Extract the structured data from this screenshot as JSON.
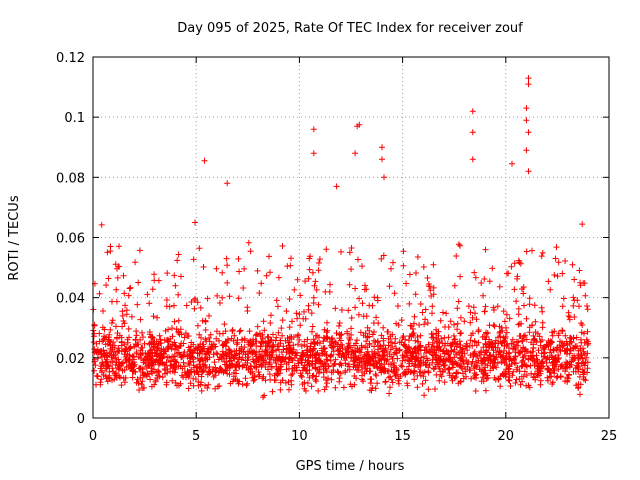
{
  "chart_data": {
    "type": "scatter",
    "title": "Day 095 of 2025, Rate Of TEC Index for receiver zouf",
    "xlabel": "GPS time / hours",
    "ylabel": "ROTI / TECUs",
    "xlim": [
      0,
      25
    ],
    "ylim": [
      0,
      0.12
    ],
    "x_ticks": [
      0,
      5,
      10,
      15,
      20,
      25
    ],
    "x_tick_labels": [
      "0",
      "5",
      "10",
      "15",
      "20",
      "25"
    ],
    "y_ticks": [
      0,
      0.02,
      0.04,
      0.06,
      0.08,
      0.1,
      0.12
    ],
    "y_tick_labels": [
      "0",
      "0.02",
      "0.04",
      "0.06",
      "0.08",
      "0.1",
      "0.12"
    ],
    "grid": true,
    "marker": "+",
    "color": "#ff0000",
    "data_x_range": [
      0,
      24
    ],
    "typical_band": [
      0.01,
      0.03
    ],
    "notable_points": [
      {
        "x": 5.4,
        "y": 0.0855
      },
      {
        "x": 6.5,
        "y": 0.078
      },
      {
        "x": 10.7,
        "y": 0.096
      },
      {
        "x": 10.7,
        "y": 0.088
      },
      {
        "x": 11.8,
        "y": 0.077
      },
      {
        "x": 12.8,
        "y": 0.097
      },
      {
        "x": 12.9,
        "y": 0.0975
      },
      {
        "x": 12.7,
        "y": 0.088
      },
      {
        "x": 14.0,
        "y": 0.09
      },
      {
        "x": 14.0,
        "y": 0.086
      },
      {
        "x": 14.1,
        "y": 0.08
      },
      {
        "x": 18.4,
        "y": 0.102
      },
      {
        "x": 18.4,
        "y": 0.095
      },
      {
        "x": 18.4,
        "y": 0.086
      },
      {
        "x": 20.3,
        "y": 0.0845
      },
      {
        "x": 21.1,
        "y": 0.113
      },
      {
        "x": 21.1,
        "y": 0.111
      },
      {
        "x": 21.0,
        "y": 0.103
      },
      {
        "x": 21.0,
        "y": 0.099
      },
      {
        "x": 21.1,
        "y": 0.095
      },
      {
        "x": 21.0,
        "y": 0.089
      },
      {
        "x": 21.1,
        "y": 0.082
      }
    ]
  }
}
